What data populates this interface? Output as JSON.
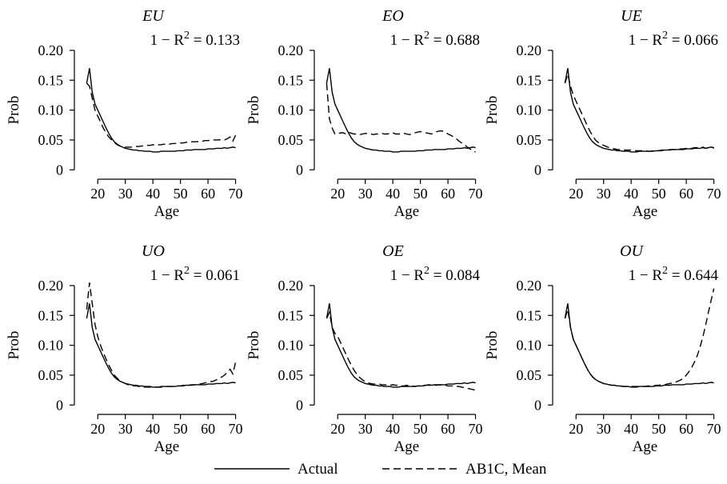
{
  "chart_data": {
    "type": "line",
    "layout": "2x3 small multiples",
    "xlabel": "Age",
    "ylabel": "Prob",
    "xlim": [
      15,
      71
    ],
    "ylim": [
      -0.005,
      0.22
    ],
    "xticks": [
      20,
      30,
      40,
      50,
      60,
      70
    ],
    "yticks": [
      0,
      0.05,
      0.1,
      0.15,
      0.2
    ],
    "ytick_labels": [
      "0",
      "0.05",
      "0.10",
      "0.15",
      "0.20"
    ],
    "grid": false,
    "legend": {
      "position": "bottom-center",
      "entries": [
        {
          "name": "Actual",
          "style": "solid"
        },
        {
          "name": "AB1C, Mean",
          "style": "dashed"
        }
      ]
    },
    "x": [
      16,
      17,
      18,
      19,
      20,
      21,
      22,
      23,
      24,
      25,
      26,
      27,
      28,
      29,
      30,
      31,
      32,
      33,
      34,
      35,
      36,
      37,
      38,
      39,
      40,
      41,
      42,
      43,
      44,
      45,
      46,
      47,
      48,
      49,
      50,
      51,
      52,
      53,
      54,
      55,
      56,
      57,
      58,
      59,
      60,
      61,
      62,
      63,
      64,
      65,
      66,
      67,
      68,
      69,
      70
    ],
    "panels": [
      {
        "title": "EU",
        "annotation": "1 − R² = 0.133",
        "series": [
          {
            "name": "Actual",
            "values": [
              0.145,
              0.17,
              0.13,
              0.11,
              0.1,
              0.09,
              0.08,
              0.07,
              0.061,
              0.053,
              0.047,
              0.043,
              0.04,
              0.038,
              0.036,
              0.035,
              0.034,
              0.033,
              0.033,
              0.032,
              0.032,
              0.031,
              0.031,
              0.031,
              0.03,
              0.03,
              0.03,
              0.031,
              0.031,
              0.031,
              0.031,
              0.031,
              0.031,
              0.032,
              0.032,
              0.032,
              0.033,
              0.033,
              0.033,
              0.034,
              0.034,
              0.034,
              0.034,
              0.034,
              0.035,
              0.035,
              0.035,
              0.036,
              0.036,
              0.036,
              0.037,
              0.036,
              0.037,
              0.038,
              0.037
            ]
          },
          {
            "name": "AB1C, Mean",
            "values": [
              0.145,
              0.14,
              0.12,
              0.1,
              0.09,
              0.08,
              0.07,
              0.062,
              0.055,
              0.05,
              0.046,
              0.042,
              0.04,
              0.039,
              0.038,
              0.038,
              0.038,
              0.038,
              0.039,
              0.039,
              0.04,
              0.04,
              0.041,
              0.041,
              0.042,
              0.041,
              0.042,
              0.042,
              0.043,
              0.042,
              0.043,
              0.044,
              0.044,
              0.045,
              0.045,
              0.045,
              0.046,
              0.046,
              0.047,
              0.047,
              0.047,
              0.048,
              0.048,
              0.049,
              0.049,
              0.049,
              0.05,
              0.05,
              0.05,
              0.051,
              0.05,
              0.052,
              0.055,
              0.048,
              0.058
            ]
          }
        ]
      },
      {
        "title": "EO",
        "annotation": "1 − R² = 0.688",
        "series": [
          {
            "name": "Actual",
            "values": [
              0.145,
              0.17,
              0.13,
              0.11,
              0.1,
              0.09,
              0.08,
              0.07,
              0.061,
              0.053,
              0.047,
              0.043,
              0.04,
              0.038,
              0.036,
              0.035,
              0.034,
              0.033,
              0.033,
              0.032,
              0.032,
              0.031,
              0.031,
              0.031,
              0.03,
              0.03,
              0.03,
              0.031,
              0.031,
              0.031,
              0.031,
              0.031,
              0.031,
              0.032,
              0.032,
              0.032,
              0.033,
              0.033,
              0.033,
              0.034,
              0.034,
              0.034,
              0.034,
              0.034,
              0.035,
              0.035,
              0.035,
              0.036,
              0.036,
              0.036,
              0.037,
              0.036,
              0.037,
              0.038,
              0.037
            ]
          },
          {
            "name": "AB1C, Mean",
            "values": [
              0.145,
              0.085,
              0.07,
              0.06,
              0.06,
              0.062,
              0.062,
              0.06,
              0.063,
              0.061,
              0.06,
              0.06,
              0.059,
              0.06,
              0.061,
              0.06,
              0.06,
              0.059,
              0.06,
              0.06,
              0.061,
              0.06,
              0.06,
              0.061,
              0.062,
              0.06,
              0.06,
              0.06,
              0.061,
              0.06,
              0.059,
              0.06,
              0.062,
              0.063,
              0.064,
              0.063,
              0.062,
              0.061,
              0.06,
              0.062,
              0.064,
              0.065,
              0.065,
              0.063,
              0.06,
              0.058,
              0.055,
              0.052,
              0.048,
              0.045,
              0.042,
              0.038,
              0.035,
              0.031,
              0.03
            ]
          }
        ]
      },
      {
        "title": "UE",
        "annotation": "1 − R² = 0.066",
        "series": [
          {
            "name": "Actual",
            "values": [
              0.145,
              0.17,
              0.13,
              0.11,
              0.1,
              0.09,
              0.08,
              0.07,
              0.061,
              0.053,
              0.047,
              0.043,
              0.04,
              0.038,
              0.036,
              0.035,
              0.034,
              0.033,
              0.033,
              0.032,
              0.032,
              0.031,
              0.031,
              0.031,
              0.03,
              0.03,
              0.03,
              0.031,
              0.031,
              0.031,
              0.031,
              0.031,
              0.031,
              0.032,
              0.032,
              0.032,
              0.033,
              0.033,
              0.033,
              0.034,
              0.034,
              0.034,
              0.034,
              0.034,
              0.035,
              0.035,
              0.035,
              0.036,
              0.036,
              0.036,
              0.037,
              0.036,
              0.037,
              0.038,
              0.037
            ]
          },
          {
            "name": "AB1C, Mean",
            "values": [
              0.145,
              0.16,
              0.14,
              0.125,
              0.115,
              0.105,
              0.095,
              0.085,
              0.075,
              0.065,
              0.057,
              0.05,
              0.046,
              0.043,
              0.041,
              0.039,
              0.037,
              0.036,
              0.035,
              0.034,
              0.034,
              0.033,
              0.033,
              0.033,
              0.033,
              0.032,
              0.032,
              0.032,
              0.032,
              0.032,
              0.031,
              0.031,
              0.032,
              0.032,
              0.032,
              0.033,
              0.033,
              0.033,
              0.034,
              0.034,
              0.034,
              0.035,
              0.035,
              0.035,
              0.036,
              0.036,
              0.036,
              0.037,
              0.037,
              0.037,
              0.038,
              0.036,
              0.037,
              0.039,
              0.036
            ]
          }
        ]
      },
      {
        "title": "UO",
        "annotation": "1 − R² = 0.061",
        "series": [
          {
            "name": "Actual",
            "values": [
              0.145,
              0.17,
              0.13,
              0.11,
              0.1,
              0.09,
              0.08,
              0.07,
              0.061,
              0.053,
              0.047,
              0.043,
              0.04,
              0.038,
              0.036,
              0.035,
              0.034,
              0.033,
              0.033,
              0.032,
              0.032,
              0.031,
              0.031,
              0.031,
              0.03,
              0.03,
              0.03,
              0.031,
              0.031,
              0.031,
              0.031,
              0.031,
              0.031,
              0.032,
              0.032,
              0.032,
              0.033,
              0.033,
              0.033,
              0.034,
              0.034,
              0.034,
              0.034,
              0.034,
              0.035,
              0.035,
              0.035,
              0.036,
              0.036,
              0.036,
              0.037,
              0.036,
              0.037,
              0.038,
              0.037
            ]
          },
          {
            "name": "AB1C, Mean",
            "values": [
              0.16,
              0.205,
              0.17,
              0.135,
              0.115,
              0.1,
              0.088,
              0.077,
              0.067,
              0.058,
              0.05,
              0.045,
              0.041,
              0.038,
              0.036,
              0.034,
              0.033,
              0.032,
              0.032,
              0.031,
              0.031,
              0.03,
              0.03,
              0.03,
              0.03,
              0.03,
              0.03,
              0.03,
              0.03,
              0.031,
              0.031,
              0.031,
              0.031,
              0.032,
              0.032,
              0.033,
              0.033,
              0.033,
              0.034,
              0.034,
              0.035,
              0.035,
              0.036,
              0.037,
              0.038,
              0.039,
              0.04,
              0.042,
              0.044,
              0.047,
              0.05,
              0.055,
              0.06,
              0.052,
              0.072
            ]
          }
        ]
      },
      {
        "title": "OE",
        "annotation": "1 − R² = 0.084",
        "series": [
          {
            "name": "Actual",
            "values": [
              0.145,
              0.17,
              0.13,
              0.11,
              0.1,
              0.09,
              0.08,
              0.07,
              0.061,
              0.053,
              0.047,
              0.043,
              0.04,
              0.038,
              0.036,
              0.035,
              0.034,
              0.033,
              0.033,
              0.032,
              0.032,
              0.031,
              0.031,
              0.031,
              0.03,
              0.03,
              0.03,
              0.031,
              0.031,
              0.031,
              0.031,
              0.031,
              0.031,
              0.032,
              0.032,
              0.032,
              0.033,
              0.033,
              0.033,
              0.034,
              0.034,
              0.034,
              0.034,
              0.034,
              0.035,
              0.035,
              0.035,
              0.036,
              0.036,
              0.036,
              0.037,
              0.036,
              0.037,
              0.038,
              0.037
            ]
          },
          {
            "name": "AB1C, Mean",
            "values": [
              0.145,
              0.155,
              0.13,
              0.12,
              0.115,
              0.105,
              0.095,
              0.085,
              0.075,
              0.066,
              0.058,
              0.051,
              0.046,
              0.042,
              0.039,
              0.037,
              0.036,
              0.035,
              0.035,
              0.035,
              0.034,
              0.034,
              0.033,
              0.033,
              0.034,
              0.033,
              0.033,
              0.032,
              0.032,
              0.033,
              0.032,
              0.032,
              0.031,
              0.032,
              0.032,
              0.033,
              0.033,
              0.034,
              0.034,
              0.033,
              0.033,
              0.034,
              0.033,
              0.033,
              0.032,
              0.032,
              0.032,
              0.031,
              0.031,
              0.03,
              0.029,
              0.028,
              0.027,
              0.026,
              0.025
            ]
          }
        ]
      },
      {
        "title": "OU",
        "annotation": "1 − R² = 0.644",
        "series": [
          {
            "name": "Actual",
            "values": [
              0.145,
              0.17,
              0.13,
              0.11,
              0.1,
              0.09,
              0.08,
              0.07,
              0.061,
              0.053,
              0.047,
              0.043,
              0.04,
              0.038,
              0.036,
              0.035,
              0.034,
              0.033,
              0.033,
              0.032,
              0.032,
              0.031,
              0.031,
              0.031,
              0.03,
              0.03,
              0.03,
              0.031,
              0.031,
              0.031,
              0.031,
              0.031,
              0.031,
              0.032,
              0.032,
              0.032,
              0.033,
              0.033,
              0.033,
              0.034,
              0.034,
              0.034,
              0.034,
              0.034,
              0.035,
              0.035,
              0.035,
              0.036,
              0.036,
              0.036,
              0.037,
              0.036,
              0.037,
              0.038,
              0.037
            ]
          },
          {
            "name": "AB1C, Mean",
            "values": [
              0.145,
              0.16,
              0.13,
              0.11,
              0.1,
              0.09,
              0.08,
              0.07,
              0.061,
              0.053,
              0.047,
              0.043,
              0.04,
              0.038,
              0.036,
              0.035,
              0.034,
              0.033,
              0.033,
              0.032,
              0.032,
              0.031,
              0.031,
              0.031,
              0.031,
              0.031,
              0.031,
              0.031,
              0.031,
              0.031,
              0.032,
              0.032,
              0.032,
              0.033,
              0.033,
              0.034,
              0.034,
              0.035,
              0.036,
              0.037,
              0.038,
              0.04,
              0.042,
              0.045,
              0.05,
              0.056,
              0.063,
              0.072,
              0.083,
              0.097,
              0.114,
              0.133,
              0.155,
              0.175,
              0.195
            ]
          }
        ]
      }
    ]
  }
}
